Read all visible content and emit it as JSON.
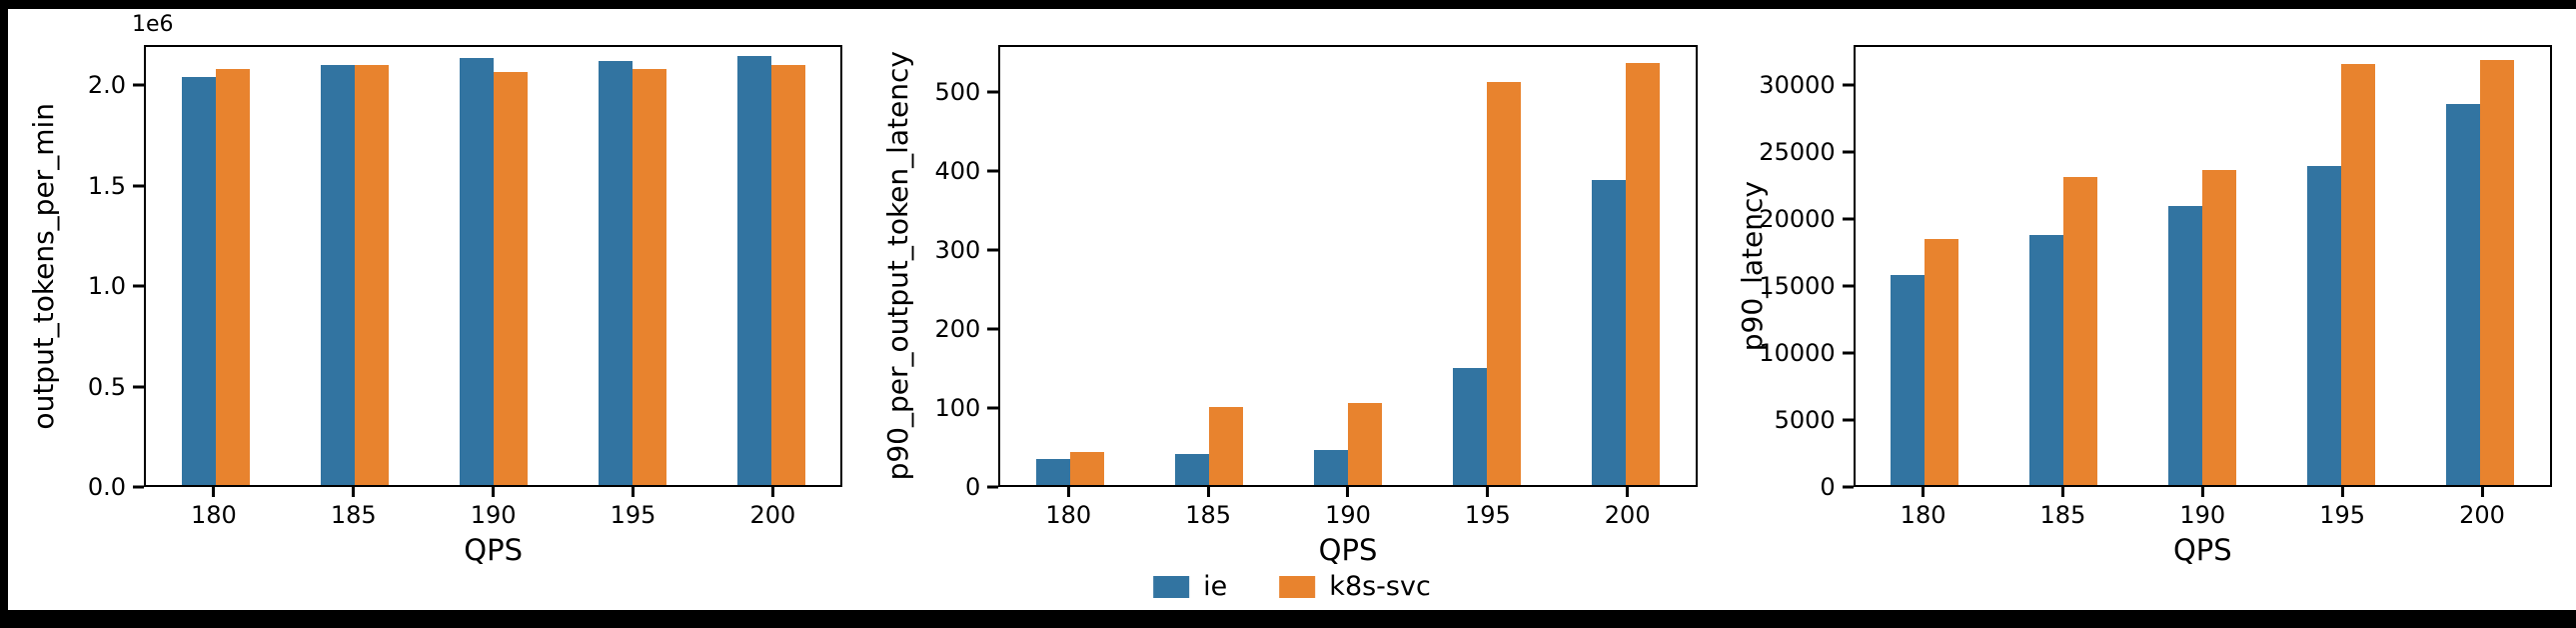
{
  "figure": {
    "background": "#ffffff",
    "outer_background": "#000000"
  },
  "legend": {
    "items": [
      {
        "label": "ie",
        "color": "#3274a1"
      },
      {
        "label": "k8s-svc",
        "color": "#e8832e"
      }
    ]
  },
  "chart_data": [
    {
      "type": "bar",
      "xlabel": "QPS",
      "ylabel": "output_tokens_per_min",
      "offset_text": "1e6",
      "categories": [
        "180",
        "185",
        "190",
        "195",
        "200"
      ],
      "series": [
        {
          "name": "ie",
          "color": "#3274a1",
          "values": [
            2050000,
            2110000,
            2145000,
            2130000,
            2155000
          ]
        },
        {
          "name": "k8s-svc",
          "color": "#e8832e",
          "values": [
            2090000,
            2110000,
            2075000,
            2090000,
            2110000
          ]
        }
      ],
      "ylim": [
        0,
        2200000
      ],
      "yticks": [
        0,
        500000,
        1000000,
        1500000,
        2000000
      ],
      "ytick_labels": [
        "0.0",
        "0.5",
        "1.0",
        "1.5",
        "2.0"
      ],
      "grid": false,
      "legend_position": "figure-bottom-center"
    },
    {
      "type": "bar",
      "xlabel": "QPS",
      "ylabel": "p90_per_output_token_latency",
      "categories": [
        "180",
        "185",
        "190",
        "195",
        "200"
      ],
      "series": [
        {
          "name": "ie",
          "color": "#3274a1",
          "values": [
            33,
            40,
            45,
            150,
            390
          ]
        },
        {
          "name": "k8s-svc",
          "color": "#e8832e",
          "values": [
            42,
            100,
            105,
            515,
            540
          ]
        }
      ],
      "ylim": [
        0,
        560
      ],
      "yticks": [
        0,
        100,
        200,
        300,
        400,
        500
      ],
      "ytick_labels": [
        "0",
        "100",
        "200",
        "300",
        "400",
        "500"
      ],
      "grid": false,
      "legend_position": "figure-bottom-center"
    },
    {
      "type": "bar",
      "xlabel": "QPS",
      "ylabel": "p90_latency",
      "categories": [
        "180",
        "185",
        "190",
        "195",
        "200"
      ],
      "series": [
        {
          "name": "ie",
          "color": "#3274a1",
          "values": [
            15800,
            18800,
            21000,
            24000,
            28700
          ]
        },
        {
          "name": "k8s-svc",
          "color": "#e8832e",
          "values": [
            18500,
            23200,
            23700,
            31700,
            32000
          ]
        }
      ],
      "ylim": [
        0,
        33000
      ],
      "yticks": [
        0,
        5000,
        10000,
        15000,
        20000,
        25000,
        30000
      ],
      "ytick_labels": [
        "0",
        "5000",
        "10000",
        "15000",
        "20000",
        "25000",
        "30000"
      ],
      "grid": false,
      "legend_position": "figure-bottom-center"
    }
  ]
}
